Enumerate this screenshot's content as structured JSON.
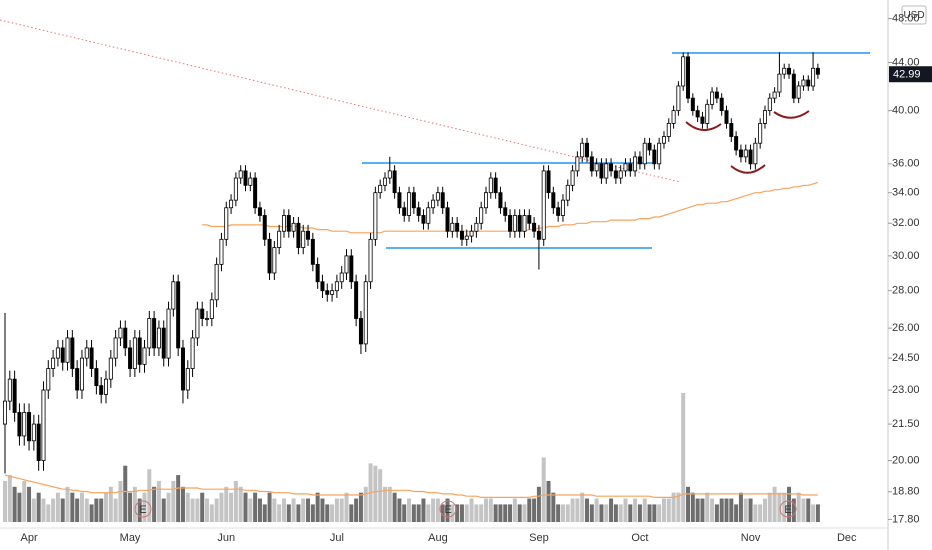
{
  "chart_data": {
    "type": "candlestick",
    "currency": "USD",
    "log": true,
    "grid": false,
    "ylim": [
      17.5,
      49.8
    ],
    "yticks": [
      {
        "value": 17.8,
        "label": "17.80"
      },
      {
        "value": 18.8,
        "label": "18.80"
      },
      {
        "value": 20,
        "label": "20.00"
      },
      {
        "value": 21.5,
        "label": "21.50"
      },
      {
        "value": 23,
        "label": "23.00"
      },
      {
        "value": 24.5,
        "label": "24.50"
      },
      {
        "value": 26,
        "label": "26.00"
      },
      {
        "value": 28,
        "label": "28.00"
      },
      {
        "value": 30,
        "label": "30.00"
      },
      {
        "value": 32,
        "label": "32.00"
      },
      {
        "value": 34,
        "label": "34.00"
      },
      {
        "value": 36,
        "label": "36.00"
      },
      {
        "value": 40,
        "label": "40.00"
      },
      {
        "value": 44,
        "label": "44.00"
      },
      {
        "value": 48,
        "label": "48.00"
      }
    ],
    "categories": [
      null,
      null,
      null,
      null,
      null,
      "Apr",
      null,
      null,
      null,
      null,
      null,
      null,
      null,
      null,
      null,
      null,
      null,
      null,
      null,
      null,
      null,
      null,
      null,
      null,
      null,
      null,
      "May",
      null,
      null,
      null,
      null,
      null,
      null,
      null,
      null,
      null,
      null,
      null,
      null,
      null,
      null,
      null,
      null,
      null,
      null,
      null,
      "Jun",
      null,
      null,
      null,
      null,
      null,
      null,
      null,
      null,
      null,
      null,
      null,
      null,
      null,
      null,
      null,
      null,
      null,
      null,
      null,
      null,
      null,
      null,
      "Jul",
      null,
      null,
      null,
      null,
      null,
      null,
      null,
      null,
      null,
      null,
      null,
      null,
      null,
      null,
      null,
      null,
      null,
      null,
      null,
      null,
      "Aug",
      null,
      null,
      null,
      null,
      null,
      null,
      null,
      null,
      null,
      null,
      null,
      null,
      null,
      null,
      null,
      null,
      null,
      null,
      null,
      null,
      "Sep",
      null,
      null,
      null,
      null,
      null,
      null,
      null,
      null,
      null,
      null,
      null,
      null,
      null,
      null,
      null,
      null,
      null,
      null,
      null,
      null,
      "Oct",
      null,
      null,
      null,
      null,
      null,
      null,
      null,
      null,
      null,
      null,
      null,
      null,
      null,
      null,
      null,
      null,
      null,
      null,
      null,
      null,
      null,
      null,
      "Nov",
      null,
      null,
      null,
      null,
      null,
      null,
      null,
      null,
      null,
      null,
      null,
      null,
      null,
      null,
      null,
      null,
      null,
      null,
      null,
      "Dec"
    ],
    "open": [
      21.5,
      22.5,
      23.5,
      22.0,
      21.0,
      22.0,
      20.8,
      21.5,
      20.0,
      23.0,
      24.0,
      24.5,
      25.0,
      24.3,
      25.5,
      24.0,
      23.0,
      24.5,
      25.0,
      24.0,
      23.2,
      22.8,
      23.5,
      24.5,
      25.5,
      26.0,
      25.0,
      24.0,
      25.5,
      24.2,
      25.0,
      26.5,
      25.0,
      26.0,
      24.5,
      27.0,
      28.5,
      25.0,
      23.0,
      24.0,
      25.5,
      27.0,
      26.5,
      26.5,
      27.5,
      29.5,
      31.0,
      33.0,
      33.5,
      35.0,
      35.5,
      34.5,
      35.0,
      33.0,
      32.5,
      31.0,
      29.0,
      30.5,
      31.5,
      32.5,
      31.5,
      32.0,
      30.5,
      31.5,
      31.0,
      29.5,
      28.5,
      28.0,
      27.8,
      28.0,
      28.5,
      29.0,
      30.0,
      28.5,
      26.5,
      25.2,
      28.5,
      31.0,
      34.0,
      34.5,
      35.0,
      35.5,
      34.0,
      33.0,
      32.5,
      34.0,
      33.0,
      32.5,
      32.0,
      33.0,
      33.5,
      34.0,
      33.0,
      31.5,
      32.0,
      31.5,
      31.0,
      31.2,
      31.5,
      32.0,
      33.0,
      34.0,
      35.0,
      34.0,
      33.0,
      32.5,
      31.5,
      32.5,
      31.5,
      32.5,
      32.0,
      31.5,
      31.0,
      35.5,
      34.0,
      33.0,
      32.5,
      33.5,
      34.5,
      35.5,
      36.5,
      37.5,
      36.5,
      35.5,
      36.0,
      35.0,
      36.0,
      35.5,
      35.0,
      35.5,
      36.0,
      35.5,
      36.5,
      36.0,
      37.5,
      37.0,
      36.0,
      37.5,
      38.0,
      39.0,
      40.0,
      42.0,
      44.5,
      41.0,
      40.0,
      39.5,
      39.0,
      40.5,
      41.5,
      41.0,
      40.0,
      39.0,
      38.0,
      37.0,
      36.5,
      37.0,
      36.0,
      37.5,
      39.0,
      40.0,
      41.0,
      41.5,
      43.0,
      43.5,
      43.0,
      41.0,
      42.0,
      42.5,
      42.0,
      43.5,
      null,
      null,
      null,
      null,
      null,
      null
    ],
    "high": [
      26.8,
      23.9,
      23.9,
      22.4,
      22.4,
      22.4,
      21.9,
      21.9,
      23.4,
      24.4,
      24.9,
      25.4,
      25.4,
      25.9,
      25.9,
      24.4,
      24.9,
      25.4,
      25.4,
      24.4,
      23.6,
      23.9,
      24.9,
      25.9,
      26.4,
      26.4,
      25.4,
      25.9,
      25.9,
      25.4,
      26.9,
      26.9,
      26.4,
      26.4,
      27.4,
      28.9,
      28.9,
      25.4,
      24.4,
      25.9,
      27.4,
      27.4,
      26.9,
      27.9,
      29.9,
      31.4,
      33.4,
      33.9,
      35.4,
      35.9,
      35.9,
      35.4,
      35.4,
      33.4,
      32.9,
      31.4,
      30.9,
      31.9,
      32.9,
      32.9,
      32.4,
      32.4,
      31.9,
      31.9,
      31.4,
      29.9,
      28.9,
      28.4,
      28.4,
      28.9,
      29.4,
      30.4,
      30.4,
      28.9,
      26.9,
      28.9,
      31.4,
      34.4,
      34.9,
      35.4,
      36.5,
      35.9,
      34.4,
      33.4,
      34.4,
      34.4,
      33.4,
      32.9,
      33.4,
      33.9,
      34.4,
      34.4,
      33.4,
      32.4,
      32.4,
      31.9,
      31.6,
      31.9,
      32.4,
      33.4,
      34.4,
      35.4,
      35.4,
      34.4,
      33.4,
      32.9,
      32.9,
      32.9,
      32.9,
      32.9,
      32.4,
      31.9,
      35.9,
      35.9,
      34.4,
      33.4,
      33.9,
      34.9,
      35.9,
      36.9,
      37.9,
      37.9,
      36.9,
      36.4,
      36.4,
      36.4,
      36.4,
      35.9,
      35.9,
      36.4,
      36.4,
      36.9,
      36.9,
      37.9,
      37.9,
      37.4,
      37.9,
      38.4,
      39.4,
      40.4,
      42.4,
      44.9,
      44.9,
      41.4,
      40.4,
      39.9,
      40.9,
      41.9,
      41.9,
      41.4,
      40.4,
      39.4,
      38.4,
      37.4,
      37.4,
      37.4,
      37.9,
      39.4,
      40.4,
      41.4,
      41.9,
      44.9,
      43.9,
      43.9,
      43.4,
      42.4,
      42.9,
      42.9,
      44.9,
      43.9,
      null,
      null,
      null,
      null,
      null,
      null
    ],
    "low": [
      19.5,
      22.1,
      21.6,
      20.6,
      20.6,
      20.4,
      20.4,
      19.6,
      19.6,
      22.6,
      23.6,
      24.1,
      23.9,
      23.9,
      23.6,
      22.6,
      22.6,
      24.1,
      23.6,
      22.8,
      22.4,
      22.4,
      23.1,
      24.1,
      25.1,
      24.6,
      23.6,
      23.6,
      23.8,
      23.8,
      24.6,
      24.6,
      24.6,
      24.1,
      24.1,
      26.6,
      24.6,
      22.4,
      22.6,
      23.6,
      25.1,
      26.1,
      26.1,
      26.1,
      27.1,
      29.1,
      30.6,
      32.6,
      33.1,
      34.6,
      34.1,
      34.1,
      32.6,
      32.1,
      30.6,
      28.6,
      28.6,
      30.1,
      31.1,
      31.1,
      31.1,
      30.1,
      30.1,
      30.6,
      29.1,
      28.1,
      27.6,
      27.4,
      27.4,
      27.6,
      28.1,
      28.6,
      28.1,
      26.1,
      24.7,
      24.8,
      28.1,
      30.6,
      33.6,
      34.1,
      34.6,
      33.6,
      32.6,
      32.1,
      32.1,
      32.6,
      32.1,
      31.6,
      31.6,
      32.6,
      33.1,
      32.6,
      31.1,
      31.1,
      31.1,
      30.6,
      30.6,
      30.8,
      31.1,
      31.6,
      32.6,
      33.6,
      33.6,
      32.6,
      32.1,
      31.1,
      31.1,
      31.1,
      31.1,
      31.6,
      31.1,
      29.2,
      30.6,
      33.6,
      32.6,
      32.1,
      32.1,
      33.1,
      34.1,
      35.1,
      36.1,
      36.1,
      35.1,
      35.1,
      34.6,
      34.6,
      35.1,
      34.6,
      34.6,
      35.1,
      35.1,
      35.1,
      35.6,
      35.6,
      36.6,
      35.6,
      35.6,
      37.1,
      37.6,
      38.6,
      39.6,
      41.6,
      40.6,
      39.6,
      39.1,
      38.6,
      38.6,
      40.1,
      40.6,
      39.6,
      38.6,
      37.6,
      36.6,
      36.1,
      36.1,
      35.6,
      35.6,
      37.1,
      38.6,
      39.6,
      40.6,
      41.1,
      42.6,
      42.6,
      40.6,
      40.6,
      41.6,
      41.6,
      41.6,
      42.6,
      null,
      null,
      null,
      null,
      null,
      null
    ],
    "close": [
      22.5,
      23.5,
      22.0,
      21.0,
      22.0,
      20.8,
      21.5,
      20.0,
      23.0,
      24.0,
      24.5,
      25.0,
      24.3,
      25.5,
      24.0,
      23.0,
      24.5,
      25.0,
      24.0,
      23.2,
      22.8,
      23.5,
      24.5,
      25.5,
      26.0,
      25.0,
      24.0,
      25.5,
      24.2,
      25.0,
      26.5,
      25.0,
      26.0,
      24.5,
      27.0,
      28.5,
      25.0,
      23.0,
      24.0,
      25.5,
      27.0,
      26.5,
      26.5,
      27.5,
      29.5,
      31.0,
      33.0,
      33.5,
      35.0,
      35.5,
      34.5,
      35.0,
      33.0,
      32.5,
      31.0,
      29.0,
      30.5,
      31.5,
      32.5,
      31.5,
      32.0,
      30.5,
      31.5,
      31.0,
      29.5,
      28.5,
      28.0,
      27.8,
      28.0,
      28.5,
      29.0,
      30.0,
      28.5,
      26.5,
      25.2,
      28.5,
      31.0,
      34.0,
      34.5,
      35.0,
      35.5,
      34.0,
      33.0,
      32.5,
      34.0,
      33.0,
      32.5,
      32.0,
      33.0,
      33.5,
      34.0,
      33.0,
      31.5,
      32.0,
      31.5,
      31.0,
      31.2,
      31.5,
      32.0,
      33.0,
      34.0,
      35.0,
      34.0,
      33.0,
      32.5,
      31.5,
      32.5,
      31.5,
      32.5,
      32.0,
      31.5,
      31.0,
      35.5,
      34.0,
      33.0,
      32.5,
      33.5,
      34.5,
      35.5,
      36.5,
      37.5,
      36.5,
      35.5,
      36.0,
      35.0,
      36.0,
      35.5,
      35.0,
      35.5,
      36.0,
      35.5,
      36.5,
      36.0,
      37.5,
      37.0,
      36.0,
      37.5,
      38.0,
      39.0,
      40.0,
      42.0,
      44.5,
      41.0,
      40.0,
      39.5,
      39.0,
      40.5,
      41.5,
      41.0,
      40.0,
      39.0,
      38.0,
      37.0,
      36.5,
      37.0,
      36.0,
      37.5,
      39.0,
      40.0,
      41.0,
      41.5,
      43.0,
      43.5,
      43.0,
      41.0,
      42.0,
      42.5,
      42.0,
      43.5,
      42.99,
      null,
      null,
      null,
      null,
      null,
      null
    ],
    "volume": [
      3.5,
      4.0,
      3.0,
      2.5,
      3.5,
      3.0,
      2.0,
      2.5,
      2.0,
      1.5,
      2.0,
      2.5,
      2.0,
      3.0,
      2.5,
      2.0,
      2.5,
      2.0,
      1.5,
      2.0,
      2.0,
      2.5,
      3.0,
      2.0,
      3.5,
      4.8,
      2.5,
      3.0,
      2.0,
      2.5,
      4.5,
      3.0,
      3.5,
      2.0,
      2.5,
      3.5,
      4.0,
      3.0,
      2.5,
      2.0,
      2.0,
      2.5,
      2.0,
      1.5,
      2.0,
      2.5,
      3.0,
      2.5,
      3.5,
      3.0,
      2.5,
      2.0,
      2.5,
      2.0,
      1.5,
      2.5,
      2.0,
      1.5,
      2.0,
      1.5,
      2.0,
      1.5,
      2.0,
      2.0,
      1.5,
      2.5,
      2.0,
      1.5,
      1.5,
      2.0,
      2.0,
      2.5,
      1.5,
      2.0,
      2.5,
      3.0,
      5.0,
      4.8,
      4.5,
      3.0,
      3.0,
      2.5,
      2.0,
      1.5,
      2.0,
      1.5,
      1.5,
      2.0,
      1.5,
      2.0,
      2.0,
      1.5,
      2.0,
      1.5,
      1.5,
      1.5,
      1.5,
      2.0,
      1.5,
      1.5,
      2.0,
      2.0,
      1.5,
      1.5,
      1.5,
      1.5,
      2.0,
      1.5,
      1.5,
      2.0,
      2.0,
      3.0,
      5.5,
      3.5,
      2.5,
      1.5,
      1.5,
      1.5,
      2.0,
      2.0,
      2.5,
      2.0,
      1.5,
      2.0,
      1.5,
      1.5,
      2.0,
      1.5,
      1.5,
      2.0,
      1.5,
      2.0,
      1.5,
      2.0,
      1.5,
      1.5,
      1.5,
      2.0,
      2.0,
      2.5,
      2.5,
      11.0,
      3.0,
      2.5,
      2.0,
      2.0,
      2.5,
      2.0,
      1.5,
      2.0,
      2.0,
      2.0,
      1.5,
      2.5,
      2.0,
      2.0,
      1.5,
      1.5,
      2.0,
      2.5,
      3.0,
      2.5,
      2.5,
      3.0,
      2.0,
      2.5,
      2.0,
      2.0,
      1.5,
      1.5,
      null,
      null,
      null,
      null,
      null,
      null
    ],
    "volume_ma": [
      4.0,
      3.9,
      3.8,
      3.7,
      3.6,
      3.5,
      3.4,
      3.3,
      3.2,
      3.1,
      3.0,
      2.9,
      2.8,
      2.8,
      2.7,
      2.7,
      2.6,
      2.6,
      2.5,
      2.5,
      2.5,
      2.5,
      2.5,
      2.5,
      2.6,
      2.6,
      2.6,
      2.6,
      2.7,
      2.7,
      2.7,
      2.8,
      2.8,
      2.8,
      2.8,
      2.8,
      2.9,
      2.9,
      2.9,
      2.9,
      2.9,
      2.8,
      2.8,
      2.8,
      2.8,
      2.8,
      2.8,
      2.8,
      2.8,
      2.8,
      2.7,
      2.7,
      2.7,
      2.6,
      2.6,
      2.6,
      2.5,
      2.5,
      2.5,
      2.5,
      2.4,
      2.4,
      2.4,
      2.4,
      2.3,
      2.3,
      2.3,
      2.3,
      2.3,
      2.3,
      2.3,
      2.3,
      2.3,
      2.3,
      2.3,
      2.4,
      2.5,
      2.6,
      2.6,
      2.7,
      2.7,
      2.7,
      2.7,
      2.7,
      2.7,
      2.6,
      2.6,
      2.6,
      2.5,
      2.5,
      2.5,
      2.4,
      2.4,
      2.4,
      2.3,
      2.3,
      2.2,
      2.2,
      2.2,
      2.1,
      2.1,
      2.1,
      2.1,
      2.1,
      2.1,
      2.1,
      2.1,
      2.1,
      2.1,
      2.1,
      2.2,
      2.2,
      2.3,
      2.3,
      2.3,
      2.3,
      2.3,
      2.3,
      2.3,
      2.3,
      2.3,
      2.3,
      2.3,
      2.2,
      2.2,
      2.2,
      2.2,
      2.2,
      2.2,
      2.2,
      2.2,
      2.2,
      2.2,
      2.2,
      2.2,
      2.1,
      2.1,
      2.1,
      2.1,
      2.1,
      2.2,
      2.4,
      2.4,
      2.4,
      2.4,
      2.4,
      2.4,
      2.4,
      2.4,
      2.4,
      2.4,
      2.4,
      2.4,
      2.4,
      2.4,
      2.4,
      2.4,
      2.4,
      2.4,
      2.4,
      2.4,
      2.4,
      2.4,
      2.4,
      2.4,
      2.4,
      2.3,
      2.3,
      2.3,
      2.3,
      null,
      null,
      null,
      null,
      null,
      null
    ],
    "ma": [
      null,
      null,
      null,
      null,
      null,
      null,
      null,
      null,
      null,
      null,
      null,
      null,
      null,
      null,
      null,
      null,
      null,
      null,
      null,
      null,
      null,
      null,
      null,
      null,
      null,
      null,
      null,
      null,
      null,
      null,
      null,
      null,
      null,
      null,
      null,
      null,
      null,
      null,
      null,
      null,
      null,
      31.9,
      31.9,
      31.8,
      31.8,
      31.8,
      31.8,
      31.9,
      31.9,
      31.9,
      31.9,
      31.9,
      31.9,
      31.9,
      31.9,
      31.8,
      31.8,
      31.8,
      31.8,
      31.8,
      31.8,
      31.8,
      31.7,
      31.7,
      31.7,
      31.6,
      31.6,
      31.6,
      31.5,
      31.5,
      31.5,
      31.5,
      31.4,
      31.4,
      31.4,
      31.4,
      31.4,
      31.4,
      31.4,
      31.5,
      31.5,
      31.5,
      31.5,
      31.5,
      31.5,
      31.5,
      31.5,
      31.5,
      31.5,
      31.5,
      31.5,
      31.5,
      31.5,
      31.5,
      31.5,
      31.5,
      31.5,
      31.5,
      31.5,
      31.5,
      31.5,
      31.5,
      31.5,
      31.5,
      31.5,
      31.5,
      31.5,
      31.5,
      31.5,
      31.6,
      31.6,
      31.7,
      31.7,
      31.8,
      31.8,
      31.8,
      31.9,
      31.9,
      31.9,
      32.0,
      32.0,
      32.0,
      32.1,
      32.1,
      32.1,
      32.1,
      32.2,
      32.2,
      32.2,
      32.2,
      32.2,
      32.2,
      32.3,
      32.3,
      32.3,
      32.4,
      32.4,
      32.5,
      32.6,
      32.7,
      32.8,
      32.9,
      33.0,
      33.1,
      33.2,
      33.2,
      33.3,
      33.3,
      33.3,
      33.4,
      33.4,
      33.5,
      33.6,
      33.7,
      33.8,
      33.9,
      34.0,
      34.0,
      34.1,
      34.1,
      34.2,
      34.2,
      34.3,
      34.3,
      34.4,
      34.4,
      34.5,
      34.5,
      34.6,
      34.7,
      null,
      null,
      null,
      null,
      null,
      null
    ],
    "events": [
      "E",
      "E",
      "E"
    ]
  }
}
